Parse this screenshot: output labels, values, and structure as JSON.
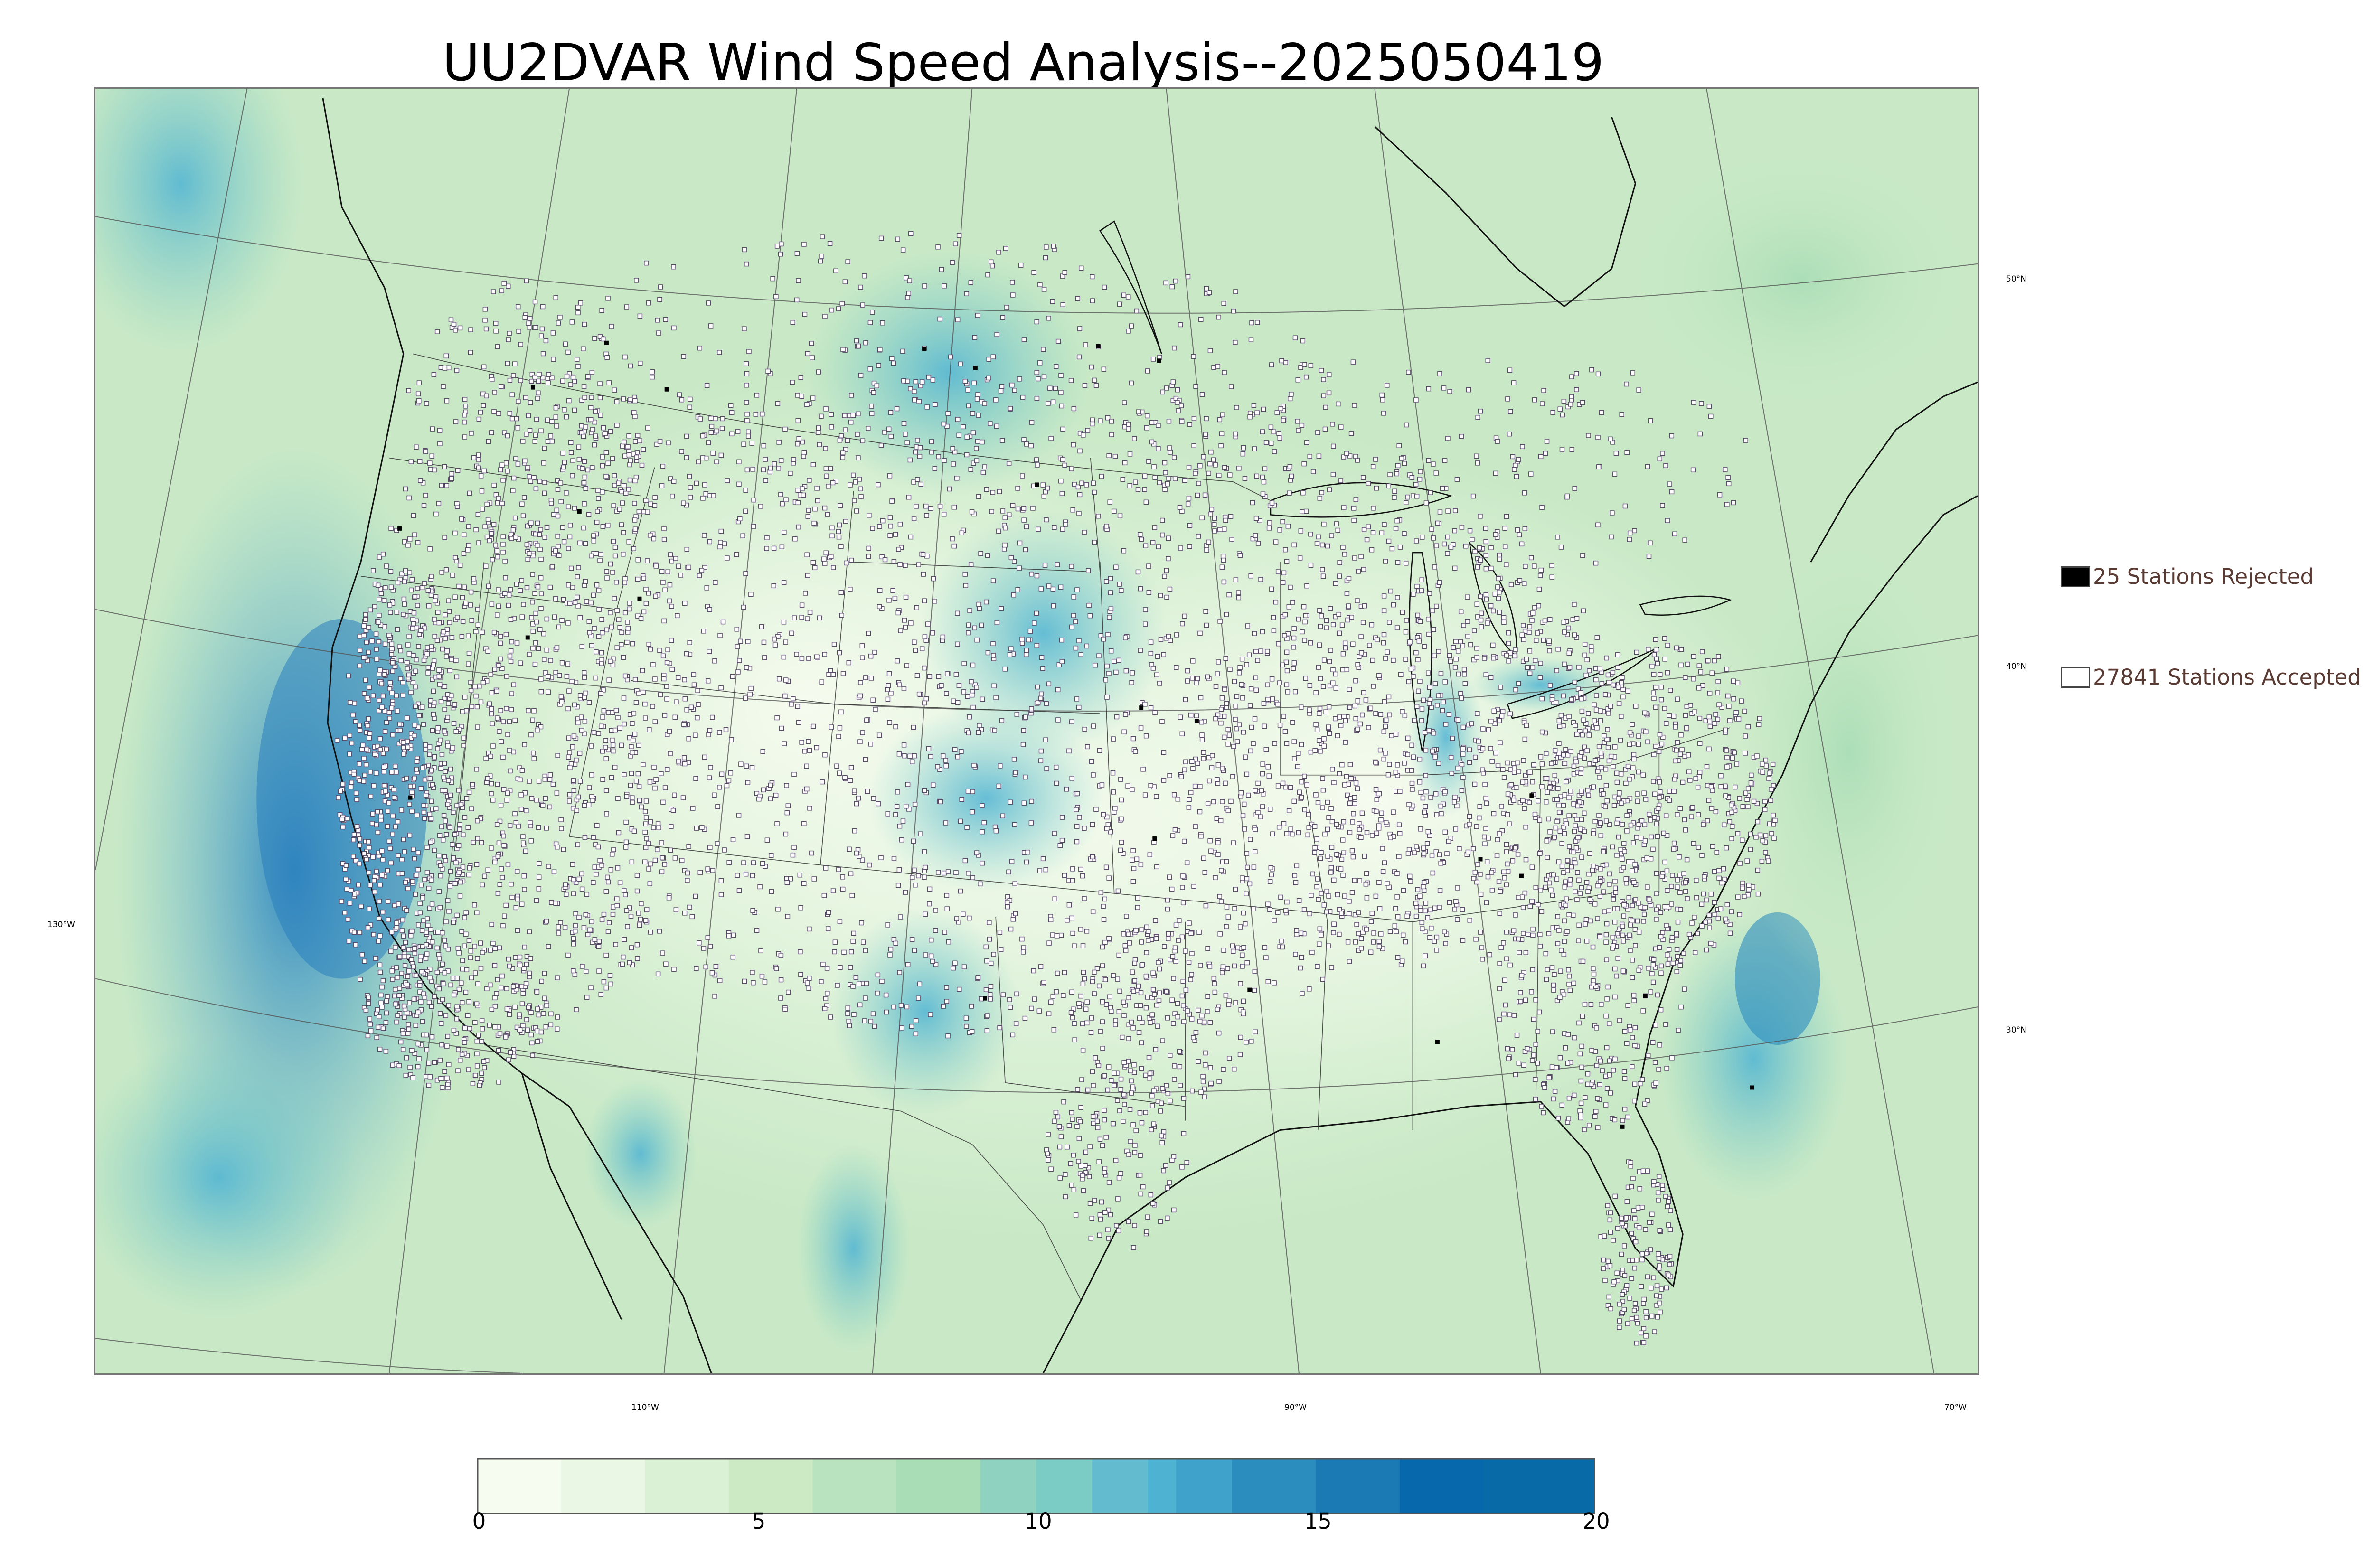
{
  "title": "UU2DVAR Wind Speed Analysis--2025050419",
  "map": {
    "lat_labels": [
      "50°N",
      "40°N",
      "30°N"
    ],
    "lon_labels": [
      "130°W",
      "110°W",
      "90°W",
      "70°W"
    ],
    "colors": {
      "land_base": "#e6f5df",
      "ocean_base": "#bfe6c7",
      "strong_wind": "#3d9dd0",
      "station_fill": "#ffffff",
      "station_edge": "#5a4a6a",
      "rejected": "#000000",
      "state_lines": "#333333"
    }
  },
  "legend": {
    "rejected_label": "25 Stations Rejected",
    "accepted_label": "27841 Stations Accepted",
    "rejected_count": 25,
    "accepted_count": 27841
  },
  "colorbar": {
    "ticks": [
      "0",
      "5",
      "10",
      "15",
      "20"
    ],
    "range": [
      0,
      20
    ],
    "colors": [
      "#f7fcf0",
      "#eaf7e4",
      "#dbf1d5",
      "#ccebc5",
      "#b8e3be",
      "#a8ddb5",
      "#8fd2bf",
      "#7bccc4",
      "#62bbcf",
      "#4eb3d3",
      "#3fa2cb",
      "#2b8cbe",
      "#1b7ab3",
      "#0868ac",
      "#086aa6"
    ]
  }
}
